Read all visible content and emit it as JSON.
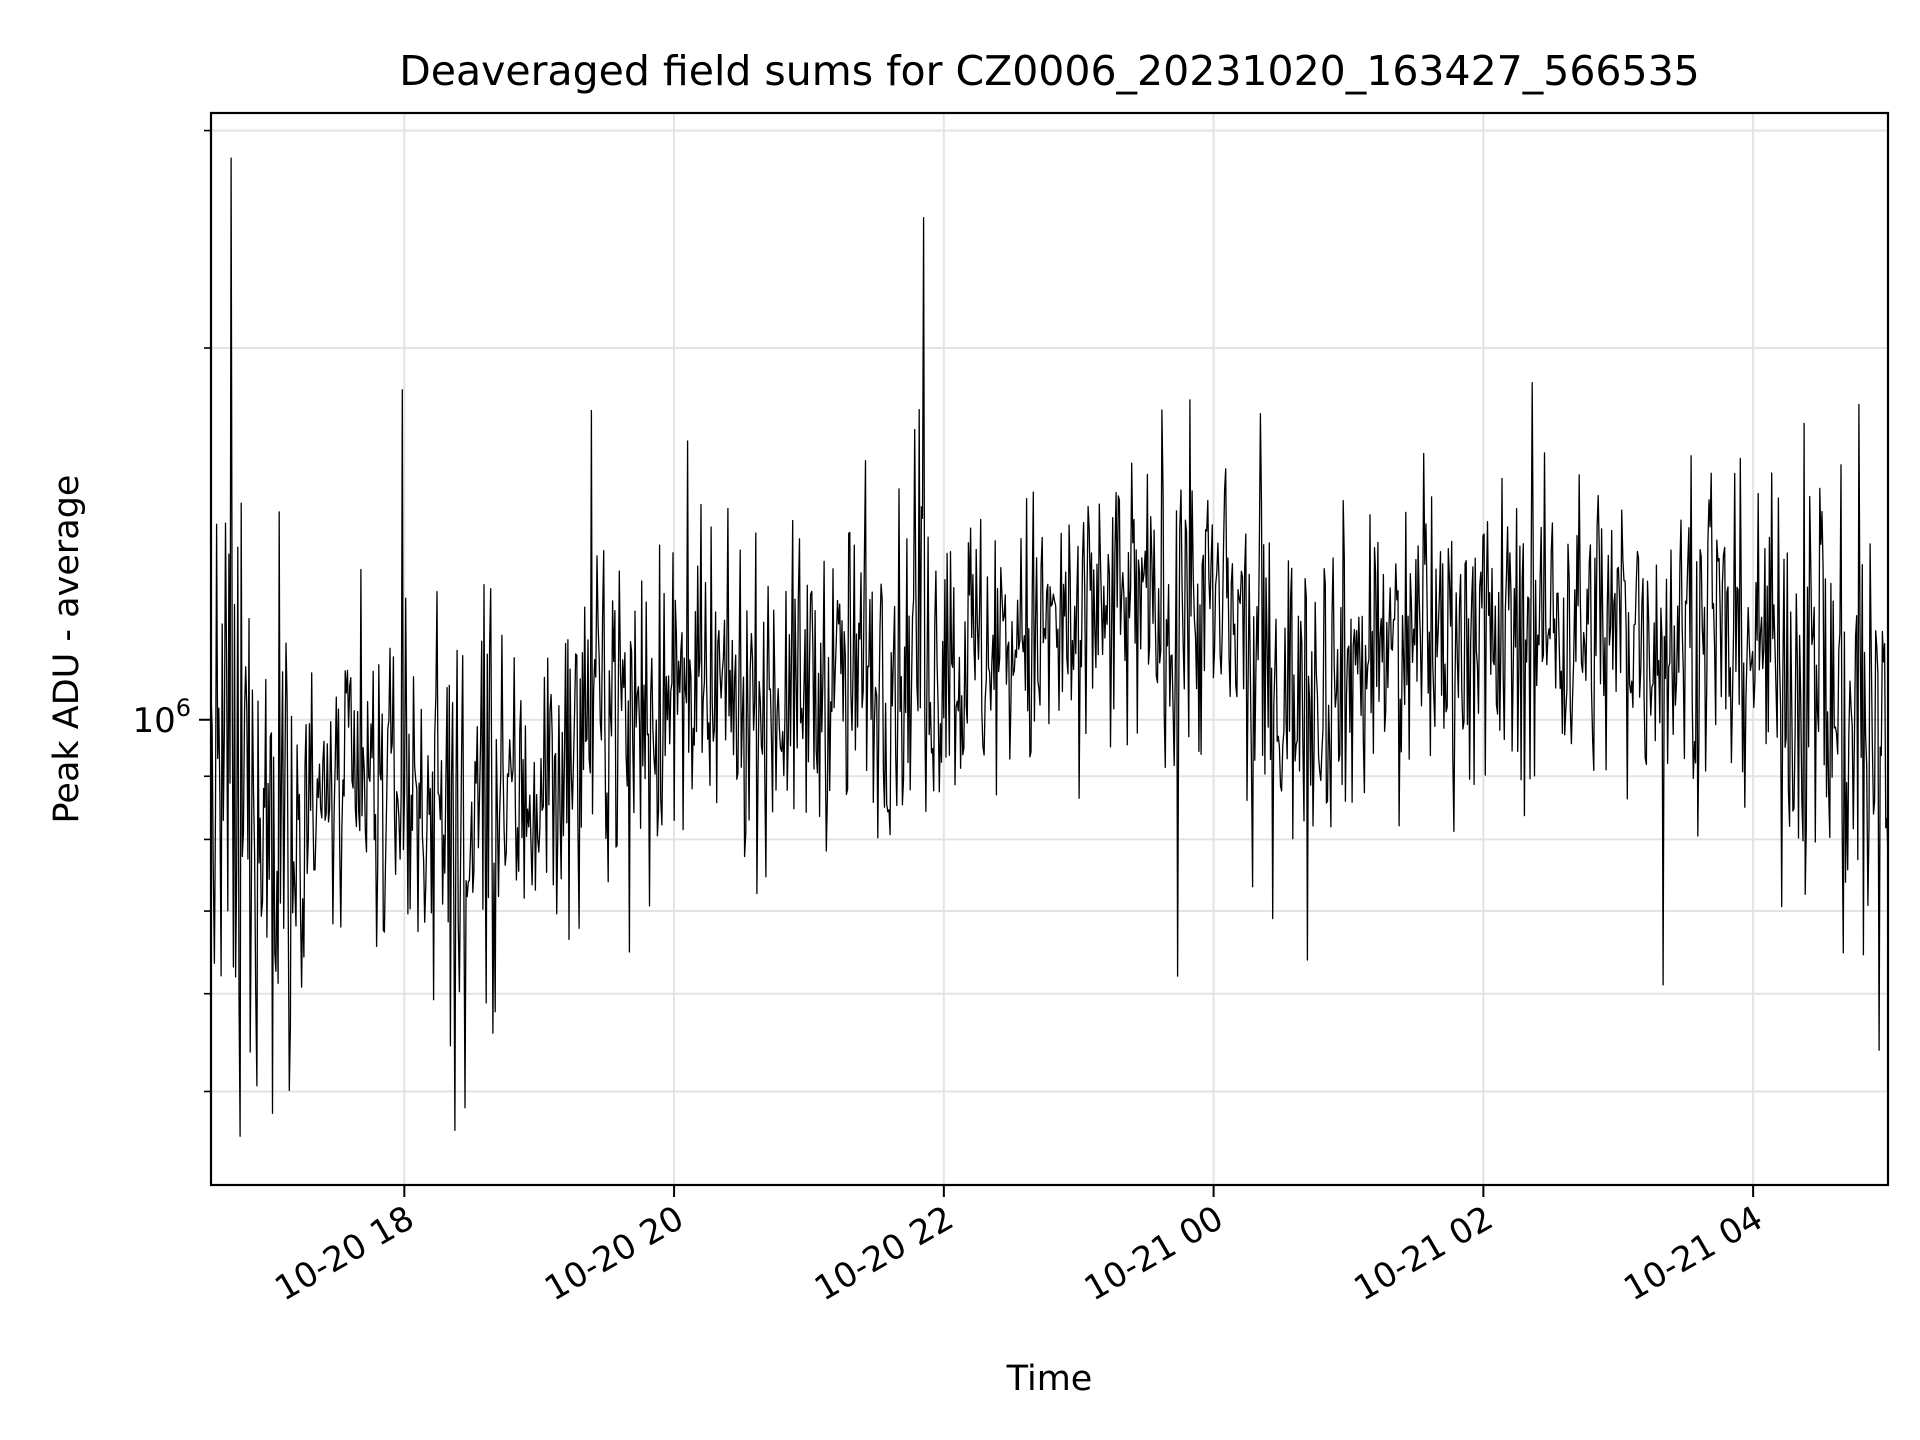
{
  "chart_data": {
    "type": "line",
    "title": "Deaveraged field sums for CZ0006_20231020_163427_566535",
    "xlabel": "Time",
    "ylabel": "Peak ADU - average",
    "y_scale": "log",
    "ylim": [
      420000,
      3100000
    ],
    "xlim": [
      "2023-10-20 16:34",
      "2023-10-21 05:00"
    ],
    "grid": true,
    "line_color": "#000000",
    "x_ticks": [
      "10-20 18",
      "10-20 20",
      "10-20 22",
      "10-21 00",
      "10-21 02",
      "10-21 04"
    ],
    "y_tick_labels": [
      {
        "base": "10",
        "exponent": "6"
      }
    ],
    "spikes": [
      {
        "time": "2023-10-20 16:43",
        "value": 2850000
      },
      {
        "time": "2023-10-20 17:59",
        "value": 1850000
      },
      {
        "time": "2023-10-20 19:23",
        "value": 1780000
      },
      {
        "time": "2023-10-20 21:51",
        "value": 2550000
      },
      {
        "time": "2023-10-21 00:21",
        "value": 1770000
      },
      {
        "time": "2023-10-21 04:47",
        "value": 1800000
      }
    ],
    "dips": [
      {
        "time": "2023-10-20 16:47",
        "value": 460000
      },
      {
        "time": "2023-10-20 18:27",
        "value": 485000
      },
      {
        "time": "2023-10-20 23:44",
        "value": 620000
      },
      {
        "time": "2023-10-21 03:20",
        "value": 610000
      },
      {
        "time": "2023-10-21 04:56",
        "value": 540000
      }
    ],
    "trend": [
      {
        "time": "2023-10-20 16:34",
        "value": 880000
      },
      {
        "time": "2023-10-20 17:00",
        "value": 800000
      },
      {
        "time": "2023-10-20 17:30",
        "value": 860000
      },
      {
        "time": "2023-10-20 18:00",
        "value": 880000
      },
      {
        "time": "2023-10-20 18:30",
        "value": 820000
      },
      {
        "time": "2023-10-20 19:00",
        "value": 880000
      },
      {
        "time": "2023-10-20 19:30",
        "value": 1050000
      },
      {
        "time": "2023-10-20 20:00",
        "value": 1020000
      },
      {
        "time": "2023-10-20 20:30",
        "value": 1030000
      },
      {
        "time": "2023-10-20 21:00",
        "value": 1060000
      },
      {
        "time": "2023-10-20 21:30",
        "value": 1090000
      },
      {
        "time": "2023-10-20 22:00",
        "value": 1120000
      },
      {
        "time": "2023-10-20 22:30",
        "value": 1150000
      },
      {
        "time": "2023-10-20 23:00",
        "value": 1180000
      },
      {
        "time": "2023-10-20 23:30",
        "value": 1240000
      },
      {
        "time": "2023-10-21 00:00",
        "value": 1230000
      },
      {
        "time": "2023-10-21 00:30",
        "value": 1050000
      },
      {
        "time": "2023-10-21 01:00",
        "value": 1100000
      },
      {
        "time": "2023-10-21 01:30",
        "value": 1180000
      },
      {
        "time": "2023-10-21 02:00",
        "value": 1160000
      },
      {
        "time": "2023-10-21 02:30",
        "value": 1200000
      },
      {
        "time": "2023-10-21 03:00",
        "value": 1180000
      },
      {
        "time": "2023-10-21 03:30",
        "value": 1170000
      },
      {
        "time": "2023-10-21 04:00",
        "value": 1160000
      },
      {
        "time": "2023-10-21 04:30",
        "value": 1050000
      },
      {
        "time": "2023-10-21 05:00",
        "value": 920000
      }
    ],
    "noise_log10_amplitude": 0.06
  }
}
